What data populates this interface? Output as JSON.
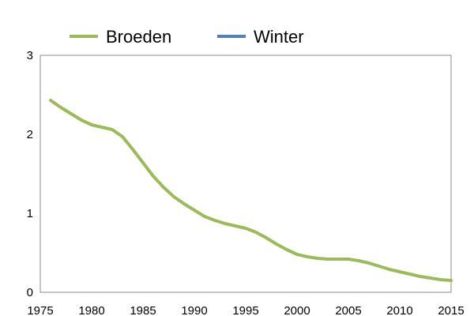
{
  "chart_data": {
    "type": "line",
    "xlim": [
      1975,
      2015
    ],
    "ylim": [
      0,
      3
    ],
    "x_ticks": [
      1975,
      1980,
      1985,
      1990,
      1995,
      2000,
      2005,
      2010,
      2015
    ],
    "y_ticks": [
      0,
      1,
      2,
      3
    ],
    "grid": false,
    "legend_position": "top",
    "series": [
      {
        "name": "Broeden",
        "color": "#9bbb59",
        "x": [
          1976,
          1977,
          1978,
          1979,
          1980,
          1981,
          1982,
          1983,
          1984,
          1985,
          1986,
          1987,
          1988,
          1989,
          1990,
          1991,
          1992,
          1993,
          1994,
          1995,
          1996,
          1997,
          1998,
          1999,
          2000,
          2001,
          2002,
          2003,
          2004,
          2005,
          2006,
          2007,
          2008,
          2009,
          2010,
          2011,
          2012,
          2013,
          2014,
          2015
        ],
        "y": [
          2.43,
          2.34,
          2.26,
          2.18,
          2.12,
          2.09,
          2.06,
          1.97,
          1.81,
          1.64,
          1.47,
          1.33,
          1.21,
          1.12,
          1.04,
          0.96,
          0.91,
          0.87,
          0.84,
          0.81,
          0.76,
          0.69,
          0.61,
          0.54,
          0.48,
          0.45,
          0.43,
          0.42,
          0.42,
          0.42,
          0.4,
          0.37,
          0.33,
          0.29,
          0.26,
          0.23,
          0.2,
          0.18,
          0.16,
          0.15
        ]
      },
      {
        "name": "Winter",
        "color": "#4f81bd",
        "x": [],
        "y": []
      }
    ]
  }
}
